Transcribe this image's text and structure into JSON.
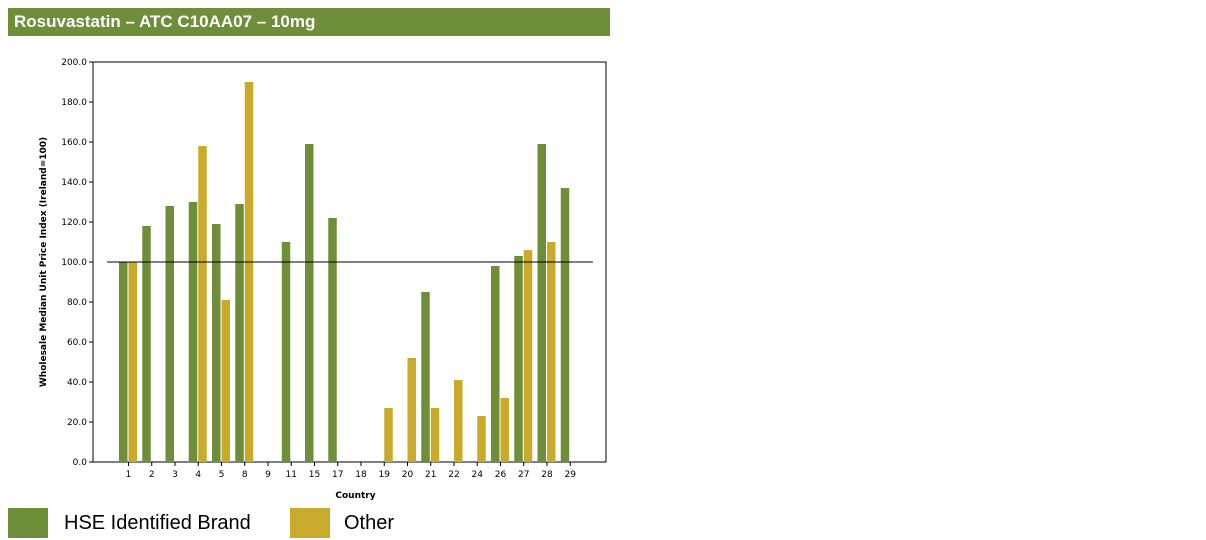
{
  "title": "Rosuvastatin – ATC C10AA07 – 10mg",
  "colors": {
    "brand": "#6e8e3a",
    "other": "#c9aa2b",
    "header": "#6e8e3a"
  },
  "chart_data": {
    "type": "bar",
    "xlabel": "Country",
    "ylabel": "Wholesale Median Unit Price Index (Ireland=100)",
    "ylim": [
      0,
      200
    ],
    "yticks": [
      0,
      20,
      40,
      60,
      80,
      100,
      120,
      140,
      160,
      180,
      200
    ],
    "ytick_labels": [
      "0.0",
      "20.0",
      "40.0",
      "60.0",
      "80.0",
      "100.0",
      "120.0",
      "140.0",
      "160.0",
      "180.0",
      "200.0"
    ],
    "reference_line": 100,
    "categories": [
      "1",
      "2",
      "3",
      "4",
      "5",
      "8",
      "9",
      "11",
      "15",
      "17",
      "18",
      "19",
      "20",
      "21",
      "22",
      "24",
      "26",
      "27",
      "28",
      "29"
    ],
    "series": [
      {
        "name": "HSE Identified Brand",
        "color": "#6e8e3a",
        "values": [
          100,
          118,
          128,
          130,
          119,
          129,
          null,
          110,
          159,
          122,
          null,
          null,
          null,
          85,
          null,
          null,
          98,
          103,
          159,
          137
        ]
      },
      {
        "name": "Other",
        "color": "#c9aa2b",
        "values": [
          100,
          null,
          null,
          158,
          81,
          190,
          null,
          null,
          null,
          null,
          null,
          27,
          52,
          27,
          41,
          23,
          32,
          106,
          110,
          null
        ]
      }
    ],
    "legend_position": "bottom-left",
    "grid": false
  }
}
